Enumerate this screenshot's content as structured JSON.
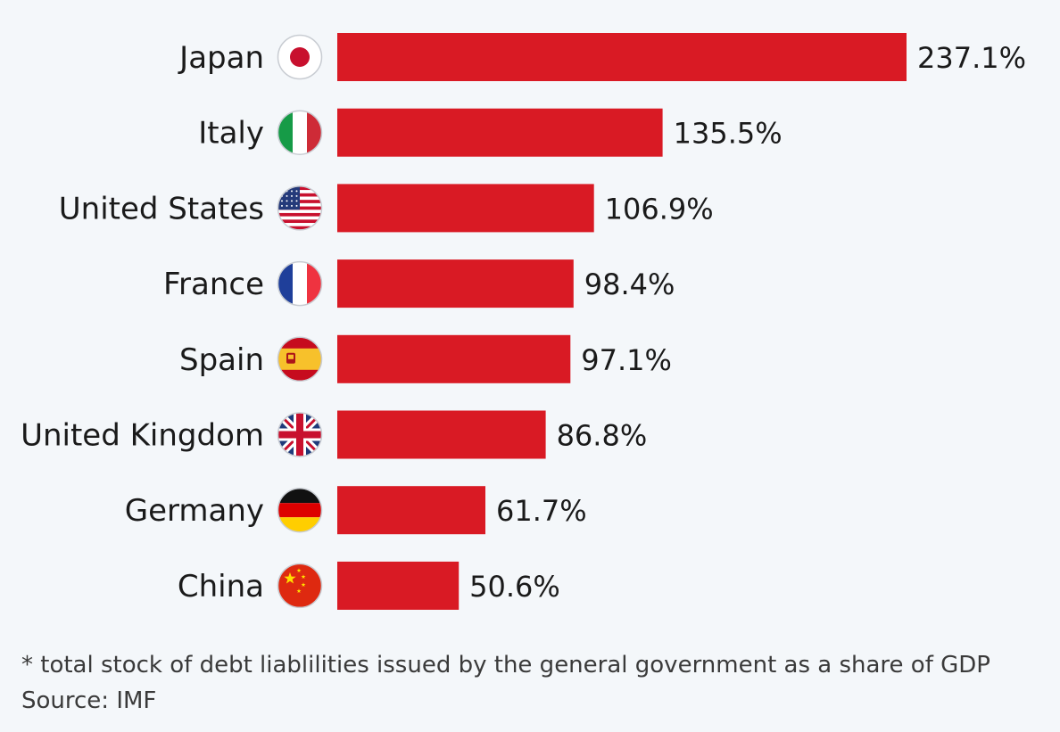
{
  "chart_data": {
    "type": "bar",
    "orientation": "horizontal",
    "categories": [
      "Japan",
      "Italy",
      "United States",
      "France",
      "Spain",
      "United Kingdom",
      "Germany",
      "China"
    ],
    "values": [
      237.1,
      135.5,
      106.9,
      98.4,
      97.1,
      86.8,
      61.7,
      50.6
    ],
    "value_labels": [
      "237.1%",
      "135.5%",
      "106.9%",
      "98.4%",
      "97.1%",
      "86.8%",
      "61.7%",
      "50.6%"
    ],
    "unit": "%",
    "xlim": [
      0,
      237.1
    ],
    "grid": false,
    "legend": "none",
    "bar_color": "#d91a24",
    "flag_icons": [
      "japan-flag-icon",
      "italy-flag-icon",
      "united-states-flag-icon",
      "france-flag-icon",
      "spain-flag-icon",
      "united-kingdom-flag-icon",
      "germany-flag-icon",
      "china-flag-icon"
    ]
  },
  "footnote": {
    "note": "* total stock of debt liablilities issued by the general government as a share of GDP",
    "source": "Source: IMF"
  }
}
